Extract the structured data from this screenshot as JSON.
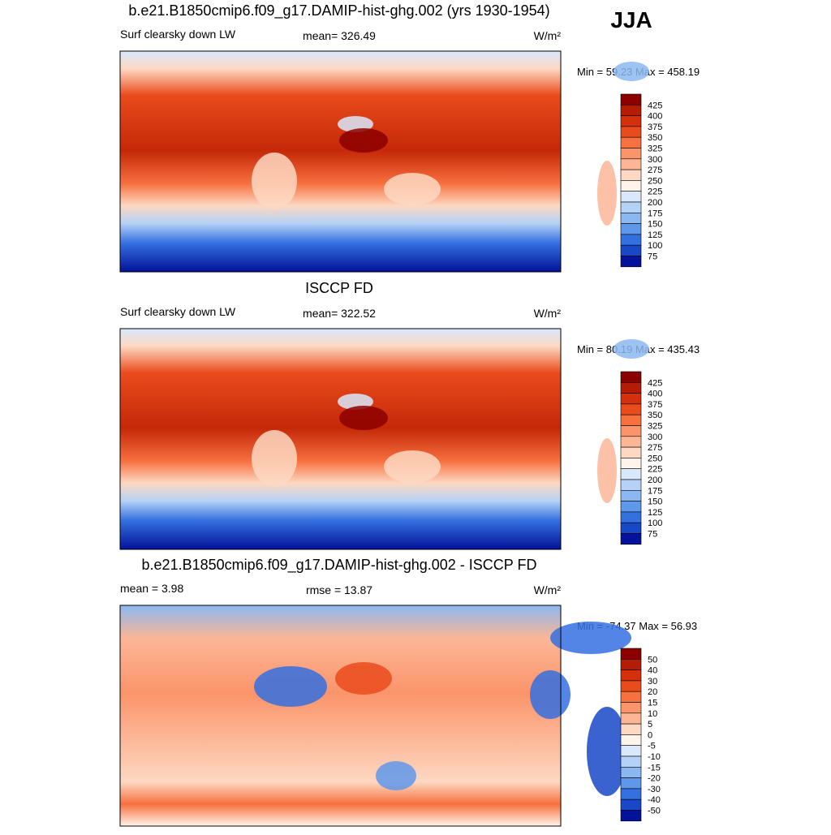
{
  "season": "JJA",
  "panels": [
    {
      "title": "b.e21.B1850cmip6.f09_g17.DAMIP-hist-ghg.002 (yrs 1930-1954)",
      "left": "Surf clearsky down LW",
      "center": "mean= 326.49",
      "units": "W/m²",
      "minmax": "Min =  59.23 Max = 458.19",
      "colorbar": {
        "labels": [
          "425",
          "400",
          "375",
          "350",
          "325",
          "300",
          "275",
          "250",
          "225",
          "200",
          "175",
          "150",
          "125",
          "100",
          "75"
        ],
        "colors": [
          "#8c0000",
          "#b51c05",
          "#d4300c",
          "#ea4b1c",
          "#f7703f",
          "#fb946a",
          "#fcb696",
          "#fdd8c2",
          "#fff3ea",
          "#d9e8fb",
          "#b5d2f6",
          "#8cb8f1",
          "#5f98ea",
          "#3470e0",
          "#1848c8",
          "#03129a"
        ]
      }
    },
    {
      "title": "ISCCP FD",
      "left": "Surf clearsky down LW",
      "center": "mean= 322.52",
      "units": "W/m²",
      "minmax": "Min =  80.19 Max = 435.43",
      "colorbar": {
        "labels": [
          "425",
          "400",
          "375",
          "350",
          "325",
          "300",
          "275",
          "250",
          "225",
          "200",
          "175",
          "150",
          "125",
          "100",
          "75"
        ],
        "colors": [
          "#8c0000",
          "#b51c05",
          "#d4300c",
          "#ea4b1c",
          "#f7703f",
          "#fb946a",
          "#fcb696",
          "#fdd8c2",
          "#fff3ea",
          "#d9e8fb",
          "#b5d2f6",
          "#8cb8f1",
          "#5f98ea",
          "#3470e0",
          "#1848c8",
          "#03129a"
        ]
      }
    },
    {
      "title": "b.e21.B1850cmip6.f09_g17.DAMIP-hist-ghg.002 - ISCCP FD",
      "left": "mean =   3.98",
      "center": "rmse =  13.87",
      "units": "W/m²",
      "minmax": "Min = -74.37 Max =  56.93",
      "colorbar": {
        "labels": [
          "50",
          "40",
          "30",
          "20",
          "15",
          "10",
          "5",
          "0",
          "-5",
          "-10",
          "-15",
          "-20",
          "-30",
          "-40",
          "-50"
        ],
        "colors": [
          "#8c0000",
          "#b51c05",
          "#d4300c",
          "#ea4b1c",
          "#f7703f",
          "#fb946a",
          "#fcb696",
          "#fdd8c2",
          "#fff3ea",
          "#d9e8fb",
          "#b5d2f6",
          "#8cb8f1",
          "#5f98ea",
          "#3470e0",
          "#1848c8",
          "#03129a"
        ]
      }
    }
  ]
}
